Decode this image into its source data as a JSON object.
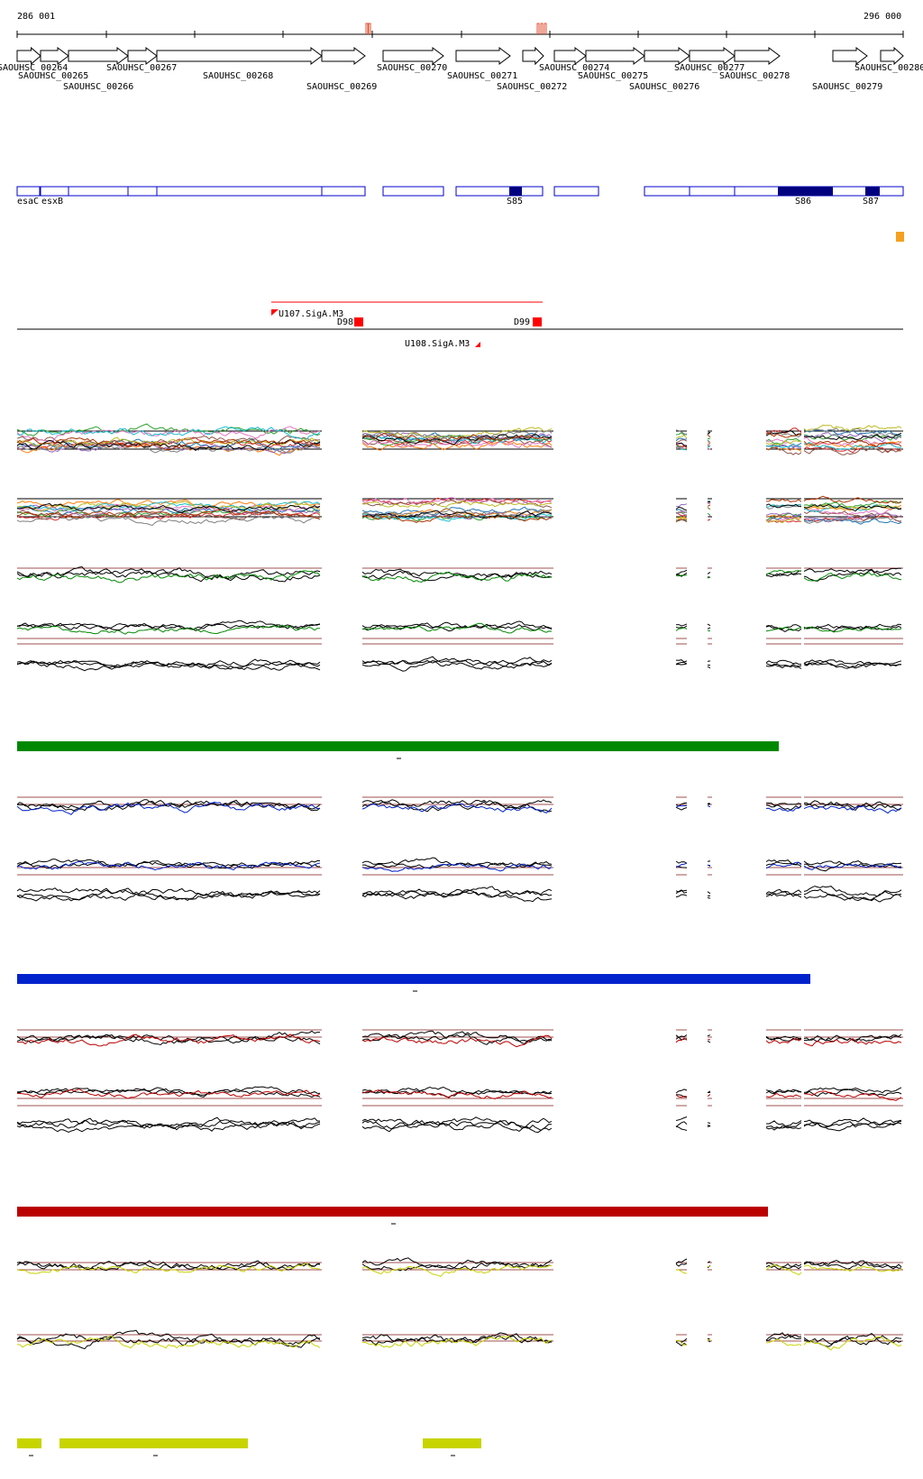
{
  "coords": {
    "start": "286 001",
    "end": "296 000"
  },
  "genes": [
    {
      "label": "SAOUHSC_00264"
    },
    {
      "label": "SAOUHSC_00265"
    },
    {
      "label": "SAOUHSC_00266"
    },
    {
      "label": "SAOUHSC_00267"
    },
    {
      "label": "SAOUHSC_00268"
    },
    {
      "label": "SAOUHSC_00269"
    },
    {
      "label": "SAOUHSC_00270"
    },
    {
      "label": "SAOUHSC_00271"
    },
    {
      "label": "SAOUHSC_00272"
    },
    {
      "label": "SAOUHSC_00274"
    },
    {
      "label": "SAOUHSC_00275"
    },
    {
      "label": "SAOUHSC_00276"
    },
    {
      "label": "SAOUHSC_00277"
    },
    {
      "label": "SAOUHSC_00278"
    },
    {
      "label": "SAOUHSC_00279"
    },
    {
      "label": "SAOUHSC_00280"
    }
  ],
  "annotations": [
    {
      "label": "esaC"
    },
    {
      "label": "esxB"
    },
    {
      "label": "S85"
    },
    {
      "label": "S86"
    },
    {
      "label": "S87"
    }
  ],
  "operons": {
    "U107": "U107.SigA.M3",
    "U108": "U108.SigA.M3",
    "D98": "D98",
    "D99": "D99"
  },
  "colors": {
    "gene_outline": "#000000",
    "annotation_box": "#0000cc",
    "annotation_fill": "#000080",
    "operon_line": "#ff0000",
    "orange_marker": "#f5a020",
    "track_green": "#008800",
    "track_blue": "#0022cc",
    "track_red": "#bb0000",
    "track_yellow": "#c8d400",
    "thresh_line": "#a05050"
  },
  "bars": [
    {
      "color": "#008800"
    },
    {
      "color": "#0022cc"
    },
    {
      "color": "#bb0000"
    },
    {
      "color": "#c8d400"
    }
  ]
}
